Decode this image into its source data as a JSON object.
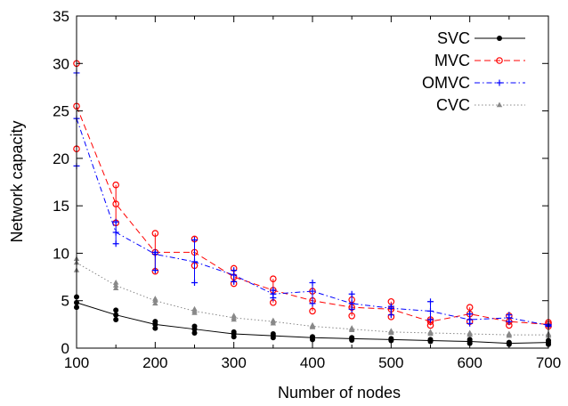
{
  "chart_data": {
    "type": "line",
    "xlabel": "Number of nodes",
    "ylabel": "Network capacity",
    "xlim": [
      100,
      700
    ],
    "ylim": [
      0,
      35
    ],
    "xticks": [
      100,
      200,
      300,
      400,
      500,
      600,
      700
    ],
    "yticks": [
      0,
      5,
      10,
      15,
      20,
      25,
      30,
      35
    ],
    "legend_position": "top-right",
    "grid": false,
    "x": [
      100,
      150,
      200,
      250,
      300,
      350,
      400,
      450,
      500,
      550,
      600,
      650,
      700
    ],
    "series": [
      {
        "name": "SVC",
        "color": "#000000",
        "dash": "solid",
        "marker": "filled-circle",
        "values": [
          4.8,
          3.5,
          2.5,
          2.0,
          1.5,
          1.3,
          1.1,
          1.0,
          0.9,
          0.8,
          0.7,
          0.5,
          0.6
        ],
        "error": [
          [
            4.3,
            5.4
          ],
          [
            3.0,
            4.0
          ],
          [
            2.1,
            2.8
          ],
          [
            1.6,
            2.3
          ],
          [
            1.2,
            1.7
          ],
          [
            1.1,
            1.5
          ],
          [
            0.9,
            1.2
          ],
          [
            0.85,
            1.1
          ],
          [
            0.8,
            1.0
          ],
          [
            0.7,
            0.9
          ],
          [
            0.5,
            0.9
          ],
          [
            0.4,
            0.6
          ],
          [
            0.4,
            0.8
          ]
        ]
      },
      {
        "name": "MVC",
        "color": "#ff0000",
        "dash": "dashed",
        "marker": "open-circle",
        "values": [
          25.5,
          15.2,
          10.1,
          10.1,
          7.5,
          6.1,
          5.0,
          4.3,
          4.1,
          2.8,
          3.6,
          2.8,
          2.5
        ],
        "error": [
          [
            21.0,
            30.0
          ],
          [
            13.2,
            17.2
          ],
          [
            8.1,
            12.1
          ],
          [
            8.7,
            11.5
          ],
          [
            6.8,
            8.4
          ],
          [
            4.8,
            7.3
          ],
          [
            3.9,
            6.0
          ],
          [
            3.4,
            5.1
          ],
          [
            3.3,
            4.9
          ],
          [
            2.4,
            3.0
          ],
          [
            2.8,
            4.3
          ],
          [
            2.4,
            3.4
          ],
          [
            2.3,
            2.7
          ]
        ]
      },
      {
        "name": "OMVC",
        "color": "#0000ff",
        "dash": "dash-dot",
        "marker": "plus",
        "values": [
          24.2,
          12.2,
          9.9,
          9.1,
          7.7,
          5.7,
          6.0,
          4.7,
          4.2,
          3.9,
          3.0,
          3.2,
          2.4
        ],
        "error": [
          [
            19.2,
            29.0
          ],
          [
            11.0,
            13.3
          ],
          [
            8.2,
            10.1
          ],
          [
            6.9,
            11.4
          ],
          [
            7.0,
            8.2
          ],
          [
            5.3,
            6.1
          ],
          [
            4.7,
            6.9
          ],
          [
            4.1,
            5.7
          ],
          [
            3.5,
            4.4
          ],
          [
            3.0,
            4.9
          ],
          [
            2.6,
            3.6
          ],
          [
            2.8,
            3.5
          ],
          [
            2.3,
            2.5
          ]
        ]
      },
      {
        "name": "CVC",
        "color": "#888888",
        "dash": "dotted",
        "marker": "triangle",
        "values": [
          9.0,
          6.6,
          5.0,
          3.9,
          3.2,
          2.8,
          2.3,
          2.0,
          1.7,
          1.6,
          1.5,
          1.4,
          1.4
        ],
        "error": [
          [
            8.2,
            9.4
          ],
          [
            6.3,
            6.9
          ],
          [
            4.7,
            5.2
          ],
          [
            3.7,
            4.1
          ],
          [
            3.0,
            3.4
          ],
          [
            2.6,
            2.9
          ],
          [
            2.2,
            2.4
          ],
          [
            1.9,
            2.1
          ],
          [
            1.6,
            1.8
          ],
          [
            1.5,
            1.7
          ],
          [
            1.4,
            1.6
          ],
          [
            1.3,
            1.5
          ],
          [
            1.3,
            1.5
          ]
        ]
      }
    ]
  }
}
